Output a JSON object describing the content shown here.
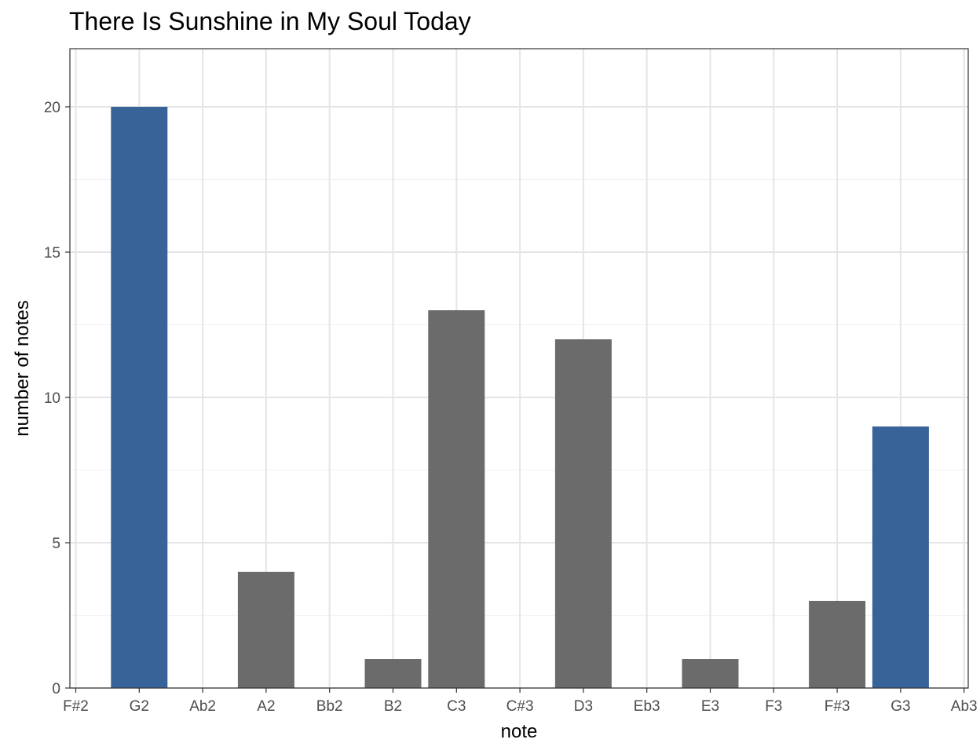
{
  "chart_data": {
    "type": "bar",
    "title": "There Is Sunshine in My Soul Today",
    "xlabel": "note",
    "ylabel": "number of notes",
    "categories": [
      "F#2",
      "G2",
      "Ab2",
      "A2",
      "Bb2",
      "B2",
      "C3",
      "C#3",
      "D3",
      "Eb3",
      "E3",
      "F3",
      "F#3",
      "G3",
      "Ab3"
    ],
    "values": [
      0,
      20,
      0,
      4,
      0,
      1,
      13,
      0,
      12,
      0,
      1,
      0,
      3,
      9,
      0
    ],
    "highlighted": [
      "G2",
      "G3"
    ],
    "ylim": [
      0,
      22
    ],
    "yticks": [
      0,
      5,
      10,
      15,
      20
    ],
    "grid": true,
    "legend": "none",
    "colors": {
      "highlight": "#376399",
      "default": "#6b6b6b",
      "grid_major": "#e5e5e5",
      "grid_minor": "#f2f2f2",
      "panel_border": "#333333"
    }
  }
}
